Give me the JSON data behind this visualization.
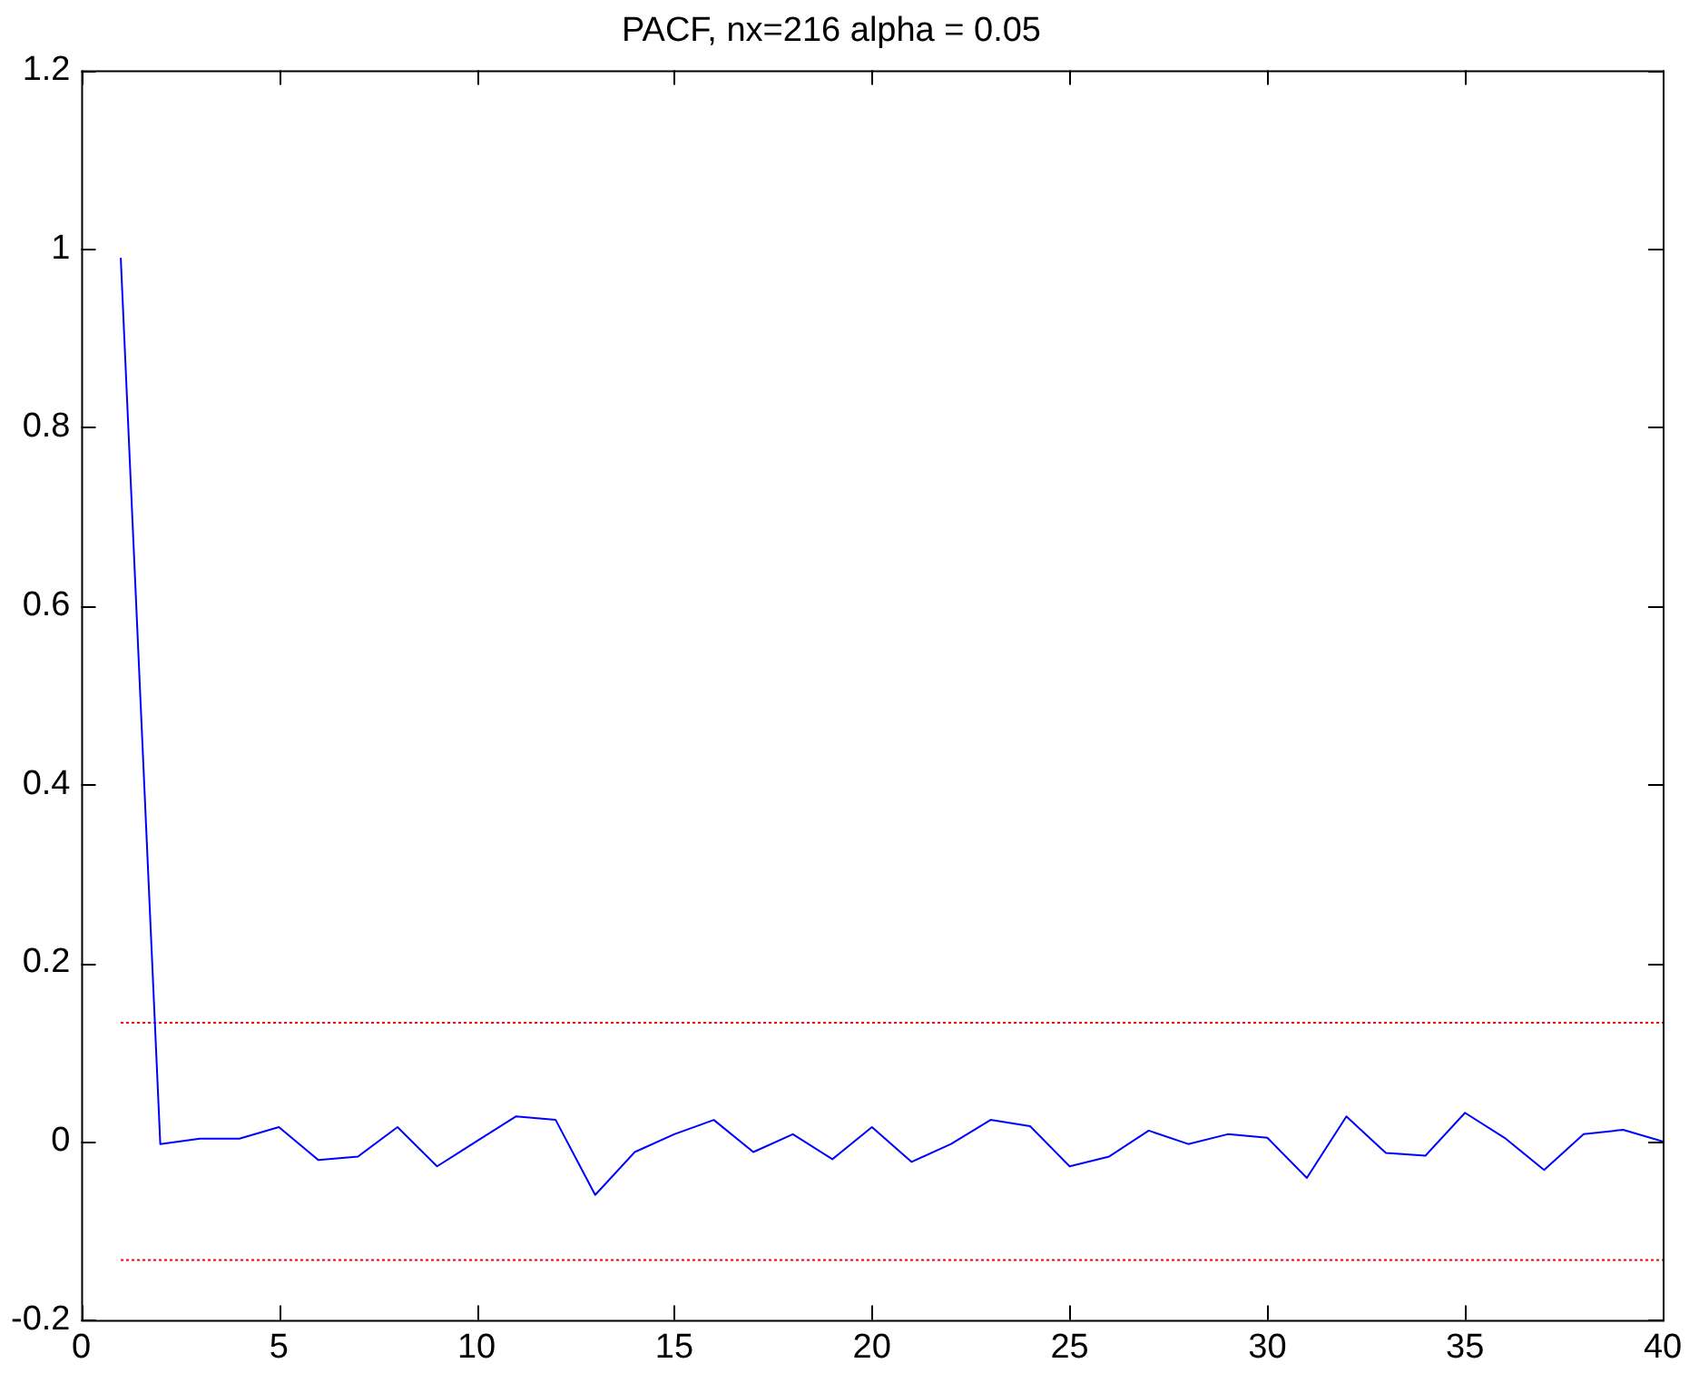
{
  "chart_data": {
    "type": "line",
    "title": "PACF, nx=216 alpha = 0.05",
    "x": [
      1,
      2,
      3,
      4,
      5,
      6,
      7,
      8,
      9,
      10,
      11,
      12,
      13,
      14,
      15,
      16,
      17,
      18,
      19,
      20,
      21,
      22,
      23,
      24,
      25,
      26,
      27,
      28,
      29,
      30,
      31,
      32,
      33,
      34,
      35,
      36,
      37,
      38,
      39,
      40
    ],
    "series": [
      {
        "color": "#0000ff",
        "values": [
          0.99,
          -0.003,
          0.003,
          0.003,
          0.016,
          -0.021,
          -0.017,
          0.016,
          -0.028,
          0.0,
          0.028,
          0.024,
          -0.06,
          -0.012,
          0.008,
          0.024,
          -0.012,
          0.008,
          -0.02,
          0.016,
          -0.023,
          -0.003,
          0.024,
          0.017,
          -0.028,
          -0.017,
          0.012,
          -0.003,
          0.008,
          0.004,
          -0.041,
          0.028,
          -0.013,
          -0.016,
          0.032,
          0.004,
          -0.032,
          0.008,
          0.013,
          0.0
        ]
      },
      {
        "type": "line",
        "color": "#ff0000",
        "line_style": "dotted",
        "values": [
          0.133,
          0.133,
          0.133,
          0.133,
          0.133,
          0.133,
          0.133,
          0.133,
          0.133,
          0.133,
          0.133,
          0.133,
          0.133,
          0.133,
          0.133,
          0.133,
          0.133,
          0.133,
          0.133,
          0.133,
          0.133,
          0.133,
          0.133,
          0.133,
          0.133,
          0.133,
          0.133,
          0.133,
          0.133,
          0.133,
          0.133,
          0.133,
          0.133,
          0.133,
          0.133,
          0.133,
          0.133,
          0.133,
          0.133,
          0.133
        ]
      },
      {
        "type": "line",
        "color": "#ff0000",
        "line_style": "dotted",
        "values": [
          -0.133,
          -0.133,
          -0.133,
          -0.133,
          -0.133,
          -0.133,
          -0.133,
          -0.133,
          -0.133,
          -0.133,
          -0.133,
          -0.133,
          -0.133,
          -0.133,
          -0.133,
          -0.133,
          -0.133,
          -0.133,
          -0.133,
          -0.133,
          -0.133,
          -0.133,
          -0.133,
          -0.133,
          -0.133,
          -0.133,
          -0.133,
          -0.133,
          -0.133,
          -0.133,
          -0.133,
          -0.133,
          -0.133,
          -0.133,
          -0.133,
          -0.133,
          -0.133,
          -0.133,
          -0.133,
          -0.133
        ]
      }
    ],
    "xlim": [
      0,
      40
    ],
    "xticks": [
      0,
      5,
      10,
      15,
      20,
      25,
      30,
      35,
      40
    ],
    "ylim": [
      -0.2,
      1.2
    ],
    "yticks": [
      -0.2,
      0,
      0.2,
      0.4,
      0.6,
      0.8,
      1,
      1.2
    ],
    "grid": false,
    "legend": false,
    "marker": "none"
  }
}
